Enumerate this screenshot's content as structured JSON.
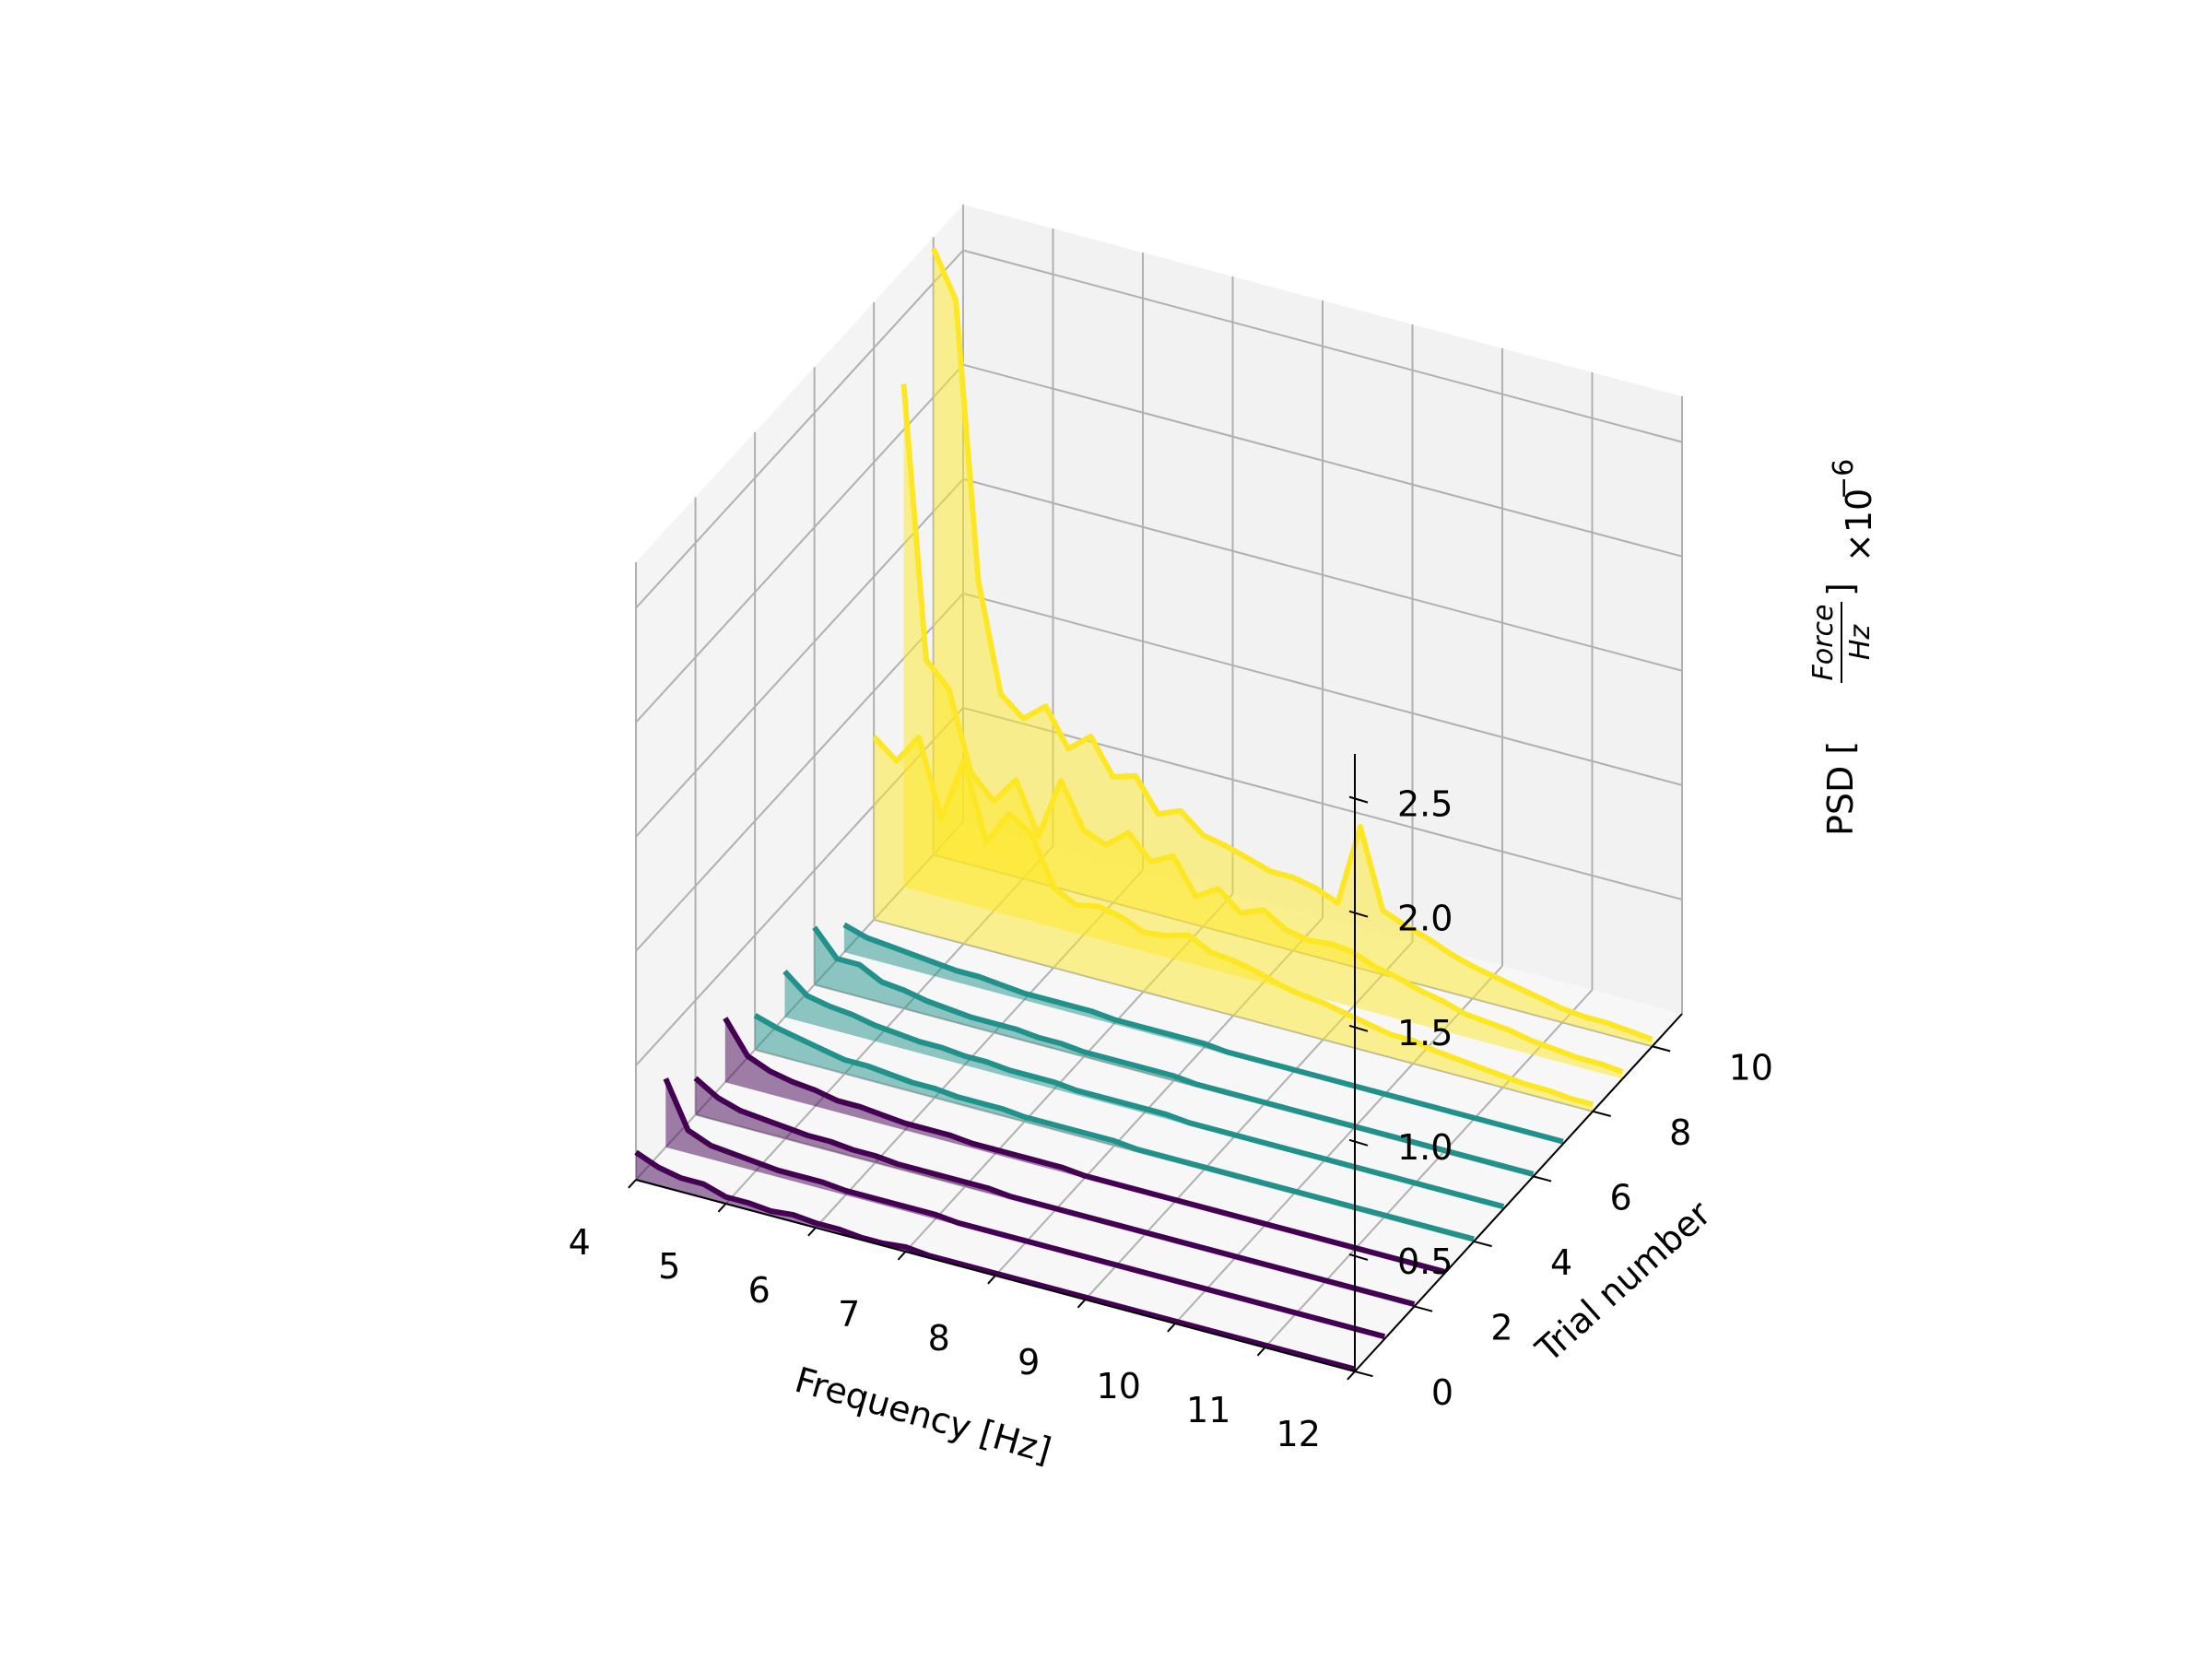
{
  "chart_data": {
    "type": "line",
    "projection": "3d-waterfall",
    "xlabel": "Frequency [Hz]",
    "ylabel": "Trial number",
    "zlabel": {
      "prefix": "PSD [",
      "numerator": "Force",
      "denominator": "Hz",
      "suffix": "]"
    },
    "z_offset_text": {
      "base": "×10",
      "exponent": "−6"
    },
    "xlim": [
      4,
      12
    ],
    "ylim": [
      0,
      11
    ],
    "zlim": [
      0,
      2.7
    ],
    "x_ticks": [
      "4",
      "5",
      "6",
      "7",
      "8",
      "9",
      "10",
      "11",
      "12"
    ],
    "y_ticks": [
      "0",
      "2",
      "4",
      "6",
      "8",
      "10"
    ],
    "z_ticks": [
      "0.5",
      "1.0",
      "1.5",
      "2.0",
      "2.5"
    ],
    "grid": true,
    "pane_color": "#f2f2f2",
    "grid_color": "#b0b0b0",
    "filled_under_lines": true,
    "frequencies": [
      4.0,
      4.25,
      4.5,
      4.75,
      5.0,
      5.25,
      5.5,
      5.75,
      6.0,
      6.25,
      6.5,
      6.75,
      7.0,
      7.25,
      7.5,
      7.75,
      8.0,
      8.25,
      8.5,
      8.75,
      9.0,
      9.25,
      9.5,
      9.75,
      10.0,
      10.25,
      10.5,
      10.75,
      11.0,
      11.25,
      11.5,
      11.75,
      12.0
    ],
    "series": [
      {
        "trial": 0,
        "color": "#440154",
        "values": [
          0.12,
          0.08,
          0.06,
          0.06,
          0.03,
          0.03,
          0.02,
          0.03,
          0.02,
          0.02,
          0.01,
          0.01,
          0.02,
          0.01,
          0.01,
          0.01,
          0.01,
          0.01,
          0.01,
          0.01,
          0.01,
          0.01,
          0.01,
          0.01,
          0.01,
          0.01,
          0.01,
          0.01,
          0.01,
          0.01,
          0.01,
          0.01,
          0.01
        ]
      },
      {
        "trial": 1,
        "color": "#440154",
        "values": [
          0.3,
          0.1,
          0.06,
          0.05,
          0.04,
          0.03,
          0.03,
          0.03,
          0.02,
          0.02,
          0.02,
          0.02,
          0.02,
          0.01,
          0.01,
          0.01,
          0.01,
          0.01,
          0.01,
          0.01,
          0.01,
          0.01,
          0.01,
          0.01,
          0.01,
          0.01,
          0.01,
          0.01,
          0.01,
          0.01,
          0.01,
          0.01,
          0.01
        ]
      },
      {
        "trial": 2,
        "color": "#440154",
        "values": [
          0.16,
          0.1,
          0.07,
          0.06,
          0.05,
          0.04,
          0.04,
          0.03,
          0.03,
          0.02,
          0.02,
          0.02,
          0.02,
          0.02,
          0.01,
          0.01,
          0.01,
          0.01,
          0.01,
          0.01,
          0.01,
          0.01,
          0.01,
          0.01,
          0.01,
          0.01,
          0.01,
          0.01,
          0.01,
          0.01,
          0.01,
          0.01,
          0.01
        ]
      },
      {
        "trial": 3,
        "color": "#440154",
        "values": [
          0.28,
          0.14,
          0.1,
          0.08,
          0.07,
          0.05,
          0.05,
          0.04,
          0.03,
          0.03,
          0.03,
          0.02,
          0.02,
          0.02,
          0.02,
          0.02,
          0.01,
          0.01,
          0.01,
          0.01,
          0.01,
          0.01,
          0.01,
          0.01,
          0.01,
          0.01,
          0.01,
          0.01,
          0.01,
          0.01,
          0.01,
          0.01,
          0.01
        ]
      },
      {
        "trial": 4,
        "color": "#21918c",
        "values": [
          0.15,
          0.12,
          0.1,
          0.08,
          0.06,
          0.06,
          0.05,
          0.04,
          0.04,
          0.03,
          0.03,
          0.03,
          0.02,
          0.02,
          0.02,
          0.02,
          0.02,
          0.01,
          0.01,
          0.01,
          0.01,
          0.01,
          0.01,
          0.01,
          0.01,
          0.01,
          0.01,
          0.01,
          0.01,
          0.01,
          0.01,
          0.01,
          0.01
        ]
      },
      {
        "trial": 5,
        "color": "#21918c",
        "values": [
          0.2,
          0.12,
          0.1,
          0.09,
          0.07,
          0.06,
          0.05,
          0.05,
          0.04,
          0.04,
          0.03,
          0.03,
          0.03,
          0.02,
          0.02,
          0.02,
          0.02,
          0.02,
          0.01,
          0.01,
          0.01,
          0.01,
          0.01,
          0.01,
          0.01,
          0.01,
          0.01,
          0.01,
          0.01,
          0.01,
          0.01,
          0.01,
          0.01
        ]
      },
      {
        "trial": 6,
        "color": "#21918c",
        "values": [
          0.25,
          0.14,
          0.14,
          0.09,
          0.08,
          0.06,
          0.05,
          0.04,
          0.04,
          0.04,
          0.03,
          0.03,
          0.02,
          0.02,
          0.02,
          0.02,
          0.02,
          0.01,
          0.01,
          0.01,
          0.01,
          0.01,
          0.01,
          0.01,
          0.01,
          0.01,
          0.01,
          0.01,
          0.01,
          0.01,
          0.01,
          0.01,
          0.01
        ]
      },
      {
        "trial": 7,
        "color": "#21918c",
        "values": [
          0.12,
          0.09,
          0.08,
          0.07,
          0.06,
          0.05,
          0.05,
          0.04,
          0.03,
          0.03,
          0.03,
          0.03,
          0.02,
          0.02,
          0.02,
          0.02,
          0.02,
          0.01,
          0.01,
          0.01,
          0.01,
          0.01,
          0.01,
          0.01,
          0.01,
          0.01,
          0.01,
          0.01,
          0.01,
          0.01,
          0.01,
          0.01,
          0.01
        ]
      },
      {
        "trial": 8,
        "color": "#fde725",
        "values": [
          0.8,
          0.72,
          0.85,
          0.52,
          0.8,
          0.47,
          0.62,
          0.56,
          0.35,
          0.3,
          0.32,
          0.3,
          0.26,
          0.27,
          0.3,
          0.25,
          0.24,
          0.22,
          0.19,
          0.17,
          0.16,
          0.14,
          0.12,
          0.1,
          0.1,
          0.08,
          0.07,
          0.06,
          0.05,
          0.04,
          0.04,
          0.03,
          0.03
        ]
      },
      {
        "trial": 9,
        "color": "#fde725",
        "values": [
          2.2,
          1.02,
          0.92,
          0.58,
          0.48,
          0.6,
          0.38,
          0.65,
          0.46,
          0.42,
          0.5,
          0.4,
          0.45,
          0.3,
          0.36,
          0.28,
          0.32,
          0.26,
          0.24,
          0.25,
          0.24,
          0.2,
          0.18,
          0.15,
          0.13,
          0.1,
          0.09,
          0.08,
          0.06,
          0.05,
          0.04,
          0.04,
          0.03
        ]
      },
      {
        "trial": 10,
        "color": "#fde725",
        "values": [
          2.65,
          2.45,
          1.25,
          0.78,
          0.7,
          0.78,
          0.62,
          0.7,
          0.55,
          0.58,
          0.44,
          0.48,
          0.4,
          0.38,
          0.35,
          0.32,
          0.32,
          0.3,
          0.26,
          0.62,
          0.28,
          0.24,
          0.21,
          0.17,
          0.14,
          0.12,
          0.1,
          0.08,
          0.06,
          0.05,
          0.05,
          0.04,
          0.03
        ]
      }
    ]
  }
}
